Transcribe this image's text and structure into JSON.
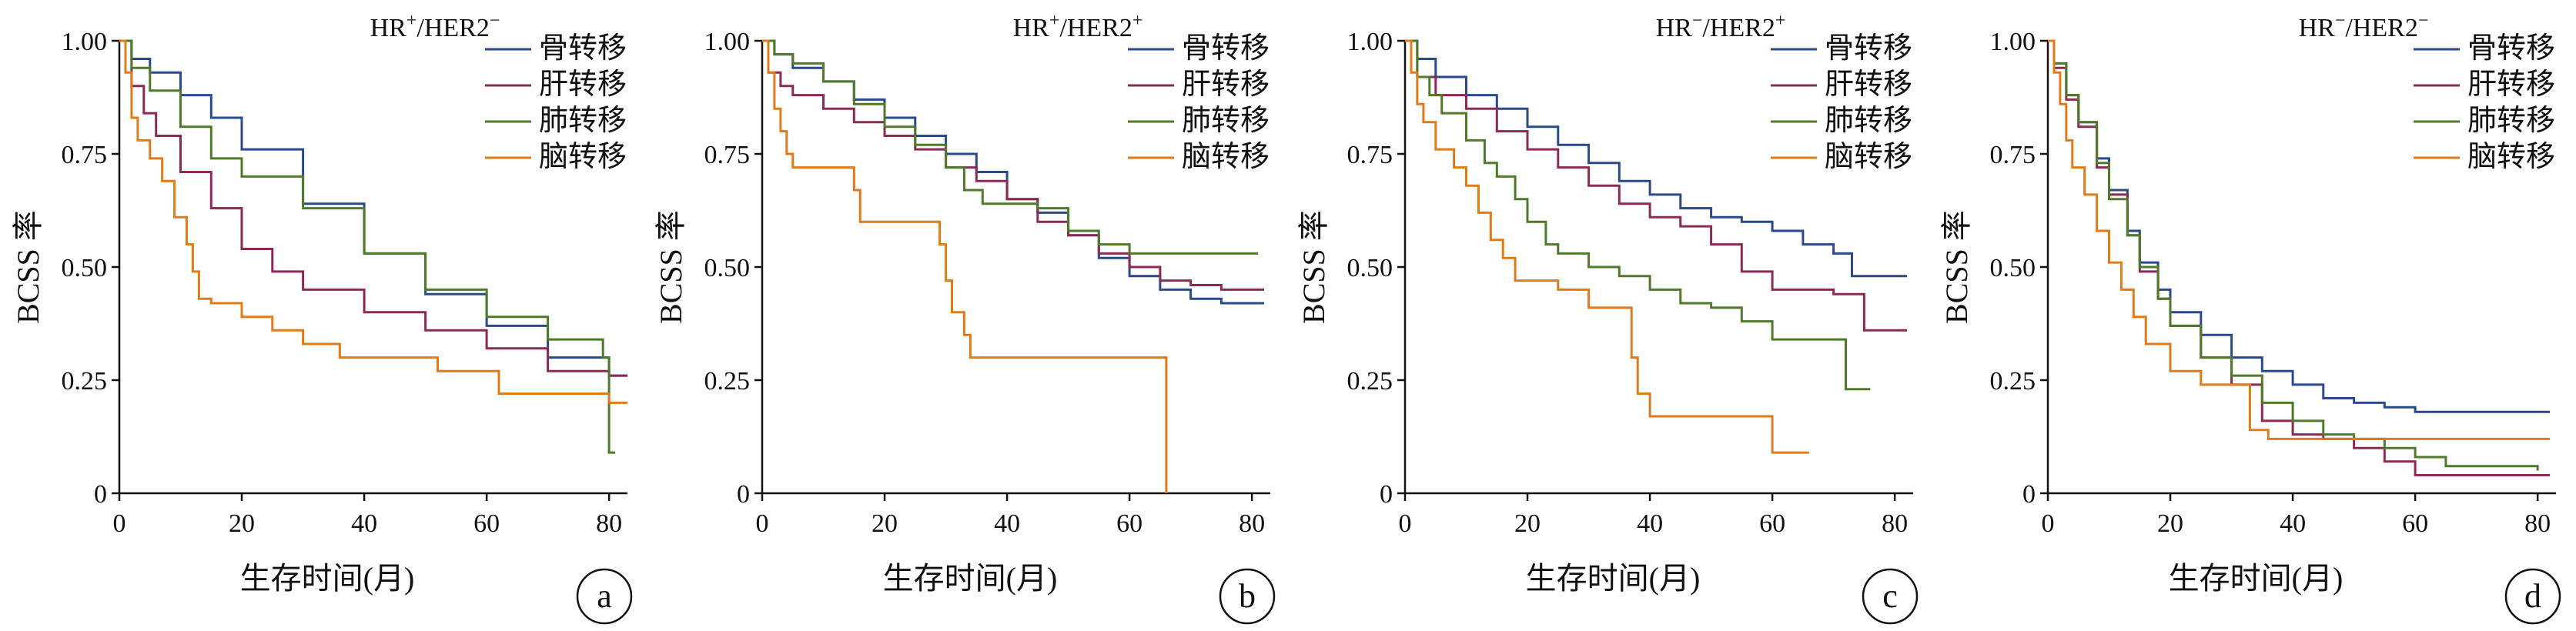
{
  "axes": {
    "xlabel": "生存时间(月)",
    "ylabel": "BCSS 率",
    "xlim": [
      0,
      83
    ],
    "ylim": [
      0,
      1
    ],
    "xticks": [
      "0",
      "20",
      "40",
      "60",
      "80"
    ],
    "yticks": [
      "0",
      "0.25",
      "0.50",
      "0.75",
      "1.00"
    ],
    "grid": false,
    "legend_position": "top-right"
  },
  "colors": {
    "骨转移": "#2b4a8b",
    "肝转移": "#8b2b55",
    "肺转移": "#4f7a2a",
    "脑转移": "#e07b1a"
  },
  "chart_data": [
    {
      "type": "line",
      "letter": "a",
      "title_parts": [
        "HR",
        "+",
        "/HER2",
        "−"
      ],
      "series": [
        {
          "name": "骨转移",
          "x": [
            0,
            2,
            5,
            10,
            15,
            20,
            30,
            40,
            50,
            60,
            70,
            80,
            83
          ],
          "y": [
            1.0,
            0.96,
            0.93,
            0.88,
            0.83,
            0.76,
            0.64,
            0.53,
            0.44,
            0.37,
            0.3,
            0.26,
            0.26
          ]
        },
        {
          "name": "肝转移",
          "x": [
            0,
            2,
            4,
            6,
            10,
            15,
            20,
            25,
            30,
            40,
            50,
            60,
            70,
            80,
            83
          ],
          "y": [
            1.0,
            0.9,
            0.84,
            0.79,
            0.71,
            0.63,
            0.54,
            0.49,
            0.45,
            0.4,
            0.36,
            0.32,
            0.27,
            0.26,
            0.26
          ]
        },
        {
          "name": "肺转移",
          "x": [
            0,
            2,
            5,
            10,
            15,
            20,
            30,
            40,
            50,
            60,
            70,
            79,
            80,
            81
          ],
          "y": [
            1.0,
            0.94,
            0.89,
            0.81,
            0.74,
            0.7,
            0.63,
            0.53,
            0.45,
            0.39,
            0.34,
            0.3,
            0.09,
            0.09
          ]
        },
        {
          "name": "脑转移",
          "x": [
            0,
            1,
            2,
            3,
            5,
            7,
            9,
            11,
            12,
            13,
            15,
            20,
            25,
            30,
            36,
            45,
            52,
            62,
            80,
            83
          ],
          "y": [
            1.0,
            0.93,
            0.83,
            0.78,
            0.74,
            0.69,
            0.61,
            0.55,
            0.49,
            0.43,
            0.42,
            0.39,
            0.36,
            0.33,
            0.3,
            0.3,
            0.27,
            0.22,
            0.2,
            0.2
          ]
        }
      ]
    },
    {
      "type": "line",
      "letter": "b",
      "title_parts": [
        "HR",
        "+",
        "/HER2",
        "+"
      ],
      "series": [
        {
          "name": "骨转移",
          "x": [
            0,
            2,
            5,
            10,
            15,
            20,
            25,
            30,
            35,
            40,
            45,
            50,
            55,
            60,
            65,
            70,
            75,
            82
          ],
          "y": [
            1.0,
            0.97,
            0.94,
            0.91,
            0.87,
            0.83,
            0.79,
            0.75,
            0.71,
            0.65,
            0.62,
            0.57,
            0.52,
            0.48,
            0.45,
            0.43,
            0.42,
            0.42
          ]
        },
        {
          "name": "肝转移",
          "x": [
            0,
            1,
            3,
            5,
            10,
            15,
            20,
            25,
            30,
            35,
            40,
            45,
            50,
            55,
            60,
            65,
            70,
            75,
            82
          ],
          "y": [
            1.0,
            0.93,
            0.9,
            0.88,
            0.85,
            0.82,
            0.79,
            0.76,
            0.72,
            0.69,
            0.65,
            0.6,
            0.57,
            0.53,
            0.5,
            0.47,
            0.46,
            0.45,
            0.45
          ]
        },
        {
          "name": "肺转移",
          "x": [
            0,
            2,
            5,
            10,
            15,
            20,
            25,
            30,
            33,
            36,
            40,
            45,
            50,
            55,
            60,
            81
          ],
          "y": [
            1.0,
            0.97,
            0.95,
            0.91,
            0.86,
            0.81,
            0.77,
            0.72,
            0.67,
            0.64,
            0.64,
            0.63,
            0.58,
            0.55,
            0.53,
            0.53
          ]
        },
        {
          "name": "脑转移",
          "x": [
            0,
            1,
            2,
            3,
            4,
            5,
            10,
            15,
            16,
            25,
            29,
            30,
            31,
            33,
            34,
            45,
            66,
            66.01
          ],
          "y": [
            1.0,
            0.93,
            0.85,
            0.8,
            0.75,
            0.72,
            0.72,
            0.67,
            0.6,
            0.6,
            0.55,
            0.47,
            0.4,
            0.35,
            0.3,
            0.3,
            0.3,
            0.0
          ]
        }
      ]
    },
    {
      "type": "line",
      "letter": "c",
      "title_parts": [
        "HR",
        "−",
        "/HER2",
        "+"
      ],
      "series": [
        {
          "name": "骨转移",
          "x": [
            0,
            2,
            5,
            10,
            15,
            20,
            25,
            30,
            35,
            40,
            45,
            50,
            55,
            60,
            65,
            70,
            73,
            82
          ],
          "y": [
            1.0,
            0.96,
            0.92,
            0.88,
            0.85,
            0.81,
            0.77,
            0.73,
            0.69,
            0.66,
            0.63,
            0.61,
            0.6,
            0.58,
            0.55,
            0.53,
            0.48,
            0.48
          ]
        },
        {
          "name": "肝转移",
          "x": [
            0,
            2,
            5,
            10,
            15,
            20,
            25,
            30,
            35,
            40,
            45,
            50,
            55,
            60,
            65,
            70,
            75,
            82
          ],
          "y": [
            1.0,
            0.92,
            0.88,
            0.85,
            0.8,
            0.76,
            0.72,
            0.68,
            0.64,
            0.61,
            0.59,
            0.55,
            0.49,
            0.45,
            0.45,
            0.44,
            0.36,
            0.36
          ]
        },
        {
          "name": "肺转移",
          "x": [
            0,
            2,
            4,
            6,
            10,
            13,
            15,
            18,
            20,
            23,
            25,
            30,
            35,
            40,
            45,
            50,
            55,
            60,
            70,
            72,
            76
          ],
          "y": [
            1.0,
            0.92,
            0.88,
            0.84,
            0.78,
            0.73,
            0.7,
            0.65,
            0.6,
            0.55,
            0.53,
            0.5,
            0.48,
            0.45,
            0.42,
            0.41,
            0.38,
            0.34,
            0.34,
            0.23,
            0.23
          ]
        },
        {
          "name": "脑转移",
          "x": [
            0,
            1,
            2,
            3,
            5,
            8,
            10,
            12,
            14,
            16,
            18,
            20,
            25,
            30,
            36,
            37,
            38,
            40,
            55,
            60,
            66
          ],
          "y": [
            1.0,
            0.93,
            0.86,
            0.82,
            0.76,
            0.72,
            0.68,
            0.62,
            0.56,
            0.52,
            0.47,
            0.47,
            0.45,
            0.41,
            0.41,
            0.3,
            0.22,
            0.17,
            0.17,
            0.09,
            0.09
          ]
        }
      ]
    },
    {
      "type": "line",
      "letter": "d",
      "title_parts": [
        "HR",
        "−",
        "/HER2",
        "−"
      ],
      "series": [
        {
          "name": "骨转移",
          "x": [
            0,
            1,
            3,
            5,
            8,
            10,
            13,
            15,
            18,
            20,
            25,
            30,
            35,
            40,
            45,
            50,
            55,
            60,
            82
          ],
          "y": [
            1.0,
            0.95,
            0.88,
            0.82,
            0.74,
            0.67,
            0.58,
            0.51,
            0.45,
            0.4,
            0.35,
            0.3,
            0.27,
            0.24,
            0.21,
            0.2,
            0.19,
            0.18,
            0.18
          ]
        },
        {
          "name": "肝转移",
          "x": [
            0,
            1,
            3,
            5,
            8,
            10,
            13,
            15,
            18,
            20,
            25,
            30,
            35,
            40,
            45,
            50,
            55,
            60,
            65,
            75,
            82
          ],
          "y": [
            1.0,
            0.94,
            0.87,
            0.81,
            0.72,
            0.66,
            0.57,
            0.49,
            0.43,
            0.37,
            0.3,
            0.24,
            0.16,
            0.13,
            0.12,
            0.1,
            0.07,
            0.04,
            0.04,
            0.04,
            0.04
          ]
        },
        {
          "name": "肺转移",
          "x": [
            0,
            1,
            3,
            5,
            8,
            10,
            13,
            15,
            18,
            20,
            25,
            30,
            35,
            40,
            45,
            50,
            55,
            60,
            65,
            70,
            80
          ],
          "y": [
            1.0,
            0.95,
            0.88,
            0.82,
            0.73,
            0.65,
            0.57,
            0.5,
            0.43,
            0.37,
            0.3,
            0.26,
            0.2,
            0.16,
            0.13,
            0.12,
            0.1,
            0.08,
            0.06,
            0.06,
            0.05
          ]
        },
        {
          "name": "脑转移",
          "x": [
            0,
            1,
            2,
            3,
            4,
            6,
            8,
            10,
            12,
            14,
            16,
            20,
            25,
            30,
            33,
            36,
            40,
            60,
            82
          ],
          "y": [
            1.0,
            0.93,
            0.86,
            0.78,
            0.72,
            0.66,
            0.58,
            0.51,
            0.45,
            0.39,
            0.33,
            0.27,
            0.24,
            0.24,
            0.14,
            0.12,
            0.12,
            0.12,
            0.12
          ]
        }
      ]
    }
  ]
}
